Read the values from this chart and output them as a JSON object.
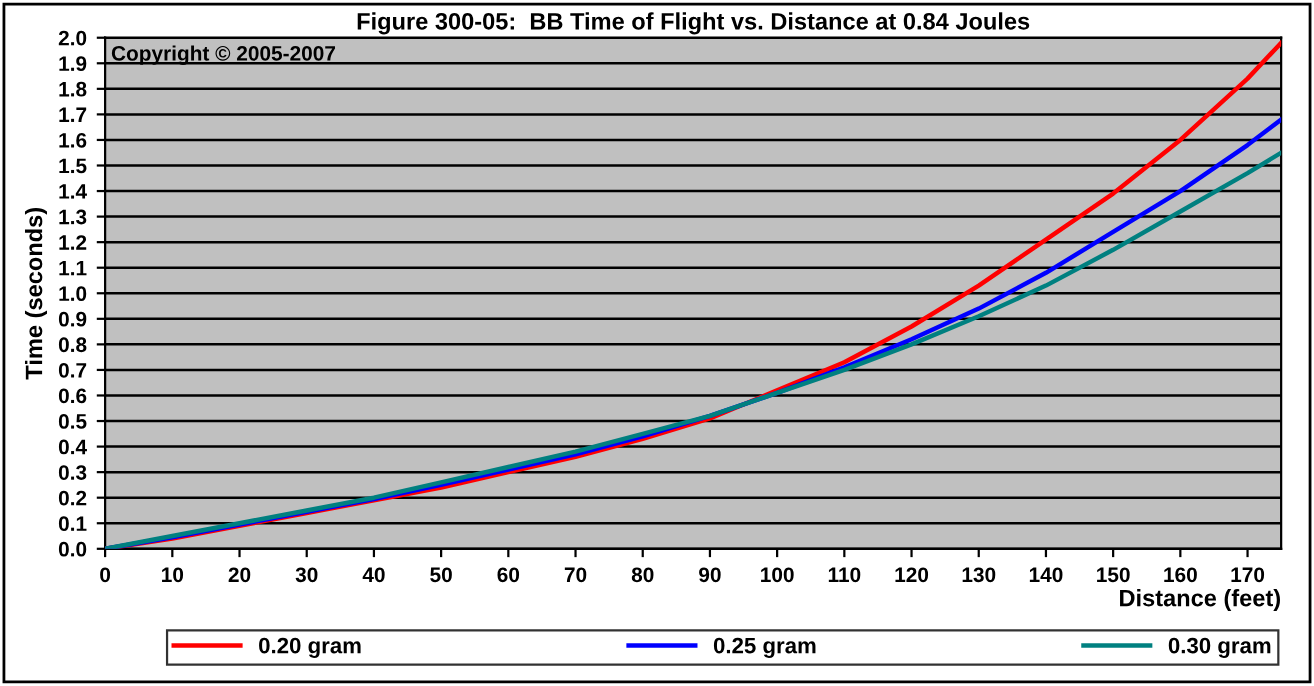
{
  "chart_data": {
    "type": "line",
    "title": "Figure 300-05:  BB Time of Flight vs. Distance at 0.84 Joules",
    "xlabel": "Distance (feet)",
    "ylabel": "Time (seconds)",
    "annotations": [
      "Copyright © 2005-2007"
    ],
    "x": [
      0,
      10,
      20,
      30,
      40,
      50,
      60,
      70,
      80,
      90,
      100,
      110,
      120,
      130,
      140,
      150,
      160,
      170,
      175
    ],
    "series": [
      {
        "name": "0.20 gram",
        "color": "#ff0000",
        "values": [
          0,
          0.04,
          0.09,
          0.14,
          0.19,
          0.24,
          0.3,
          0.36,
          0.43,
          0.51,
          0.62,
          0.73,
          0.87,
          1.03,
          1.21,
          1.39,
          1.6,
          1.84,
          1.98
        ]
      },
      {
        "name": "0.25 gram",
        "color": "#0000ff",
        "values": [
          0,
          0.045,
          0.095,
          0.145,
          0.195,
          0.25,
          0.31,
          0.37,
          0.44,
          0.52,
          0.61,
          0.71,
          0.82,
          0.94,
          1.08,
          1.24,
          1.4,
          1.58,
          1.68
        ]
      },
      {
        "name": "0.30 gram",
        "color": "#008080",
        "values": [
          0,
          0.05,
          0.1,
          0.15,
          0.2,
          0.26,
          0.32,
          0.38,
          0.45,
          0.52,
          0.61,
          0.7,
          0.8,
          0.91,
          1.03,
          1.17,
          1.32,
          1.47,
          1.55
        ]
      }
    ],
    "xlim": [
      0,
      175
    ],
    "xticks": [
      0,
      10,
      20,
      30,
      40,
      50,
      60,
      70,
      80,
      90,
      100,
      110,
      120,
      130,
      140,
      150,
      160,
      170
    ],
    "ylim": [
      0,
      2.0
    ],
    "yticks": [
      {
        "value": 0,
        "label": "0.0"
      },
      0.1,
      0.2,
      0.3,
      0.4,
      0.5,
      0.6,
      0.7,
      0.8,
      0.9,
      {
        "value": 1,
        "label": "1.0"
      },
      1.1,
      1.2,
      1.3,
      1.4,
      1.5,
      1.6,
      1.7,
      1.8,
      1.9,
      {
        "value": 2,
        "label": "2.0"
      }
    ],
    "grid": "y",
    "legend": "bottom",
    "line_style": "solid",
    "marker": "none"
  }
}
